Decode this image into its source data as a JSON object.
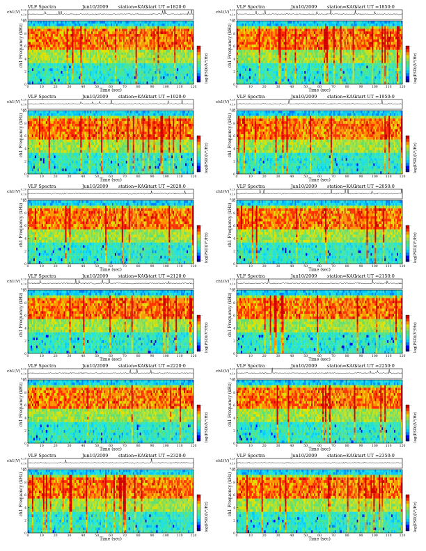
{
  "layout_labels": {
    "ts_label": "ch1(V)",
    "spec_ylabel": "ch1 Frequency (kHz)",
    "xlabel": "Time (sec)",
    "colorbar_label": "log(PSD)(V²/Hz)"
  },
  "chart_data": [
    {
      "type": "heatmap",
      "title": "VLF Spectra",
      "date": "Jun10/2009",
      "station": "station=KAG",
      "start": "start UT =1820:0",
      "ts_ticks": [
        "0.00",
        "0.10",
        "0.20"
      ],
      "y": {
        "label": "Frequency (kHz)",
        "ticks": [
          0,
          2,
          4,
          6,
          8,
          10
        ],
        "range": [
          0,
          10
        ]
      },
      "x": {
        "label": "Time (sec)",
        "ticks": [
          0,
          10,
          20,
          30,
          40,
          50,
          60,
          70,
          80,
          90,
          100,
          110,
          120
        ],
        "range": [
          0,
          120
        ]
      },
      "colorbar": {
        "label": "log(PSD)(V²/Hz)",
        "min": "-",
        "max": "-"
      }
    },
    {
      "type": "heatmap",
      "title": "VLF Spectra",
      "date": "Jun10/2009",
      "station": "station=KAG",
      "start": "start UT =1850:0",
      "ts_ticks": [
        "0.00",
        "0.10",
        "0.20"
      ],
      "y": {
        "label": "Frequency (kHz)",
        "ticks": [
          0,
          2,
          4,
          6,
          8,
          10
        ],
        "range": [
          0,
          10
        ]
      },
      "x": {
        "label": "Time (sec)",
        "ticks": [
          0,
          10,
          20,
          30,
          40,
          50,
          60,
          70,
          80,
          90,
          100,
          110,
          120
        ],
        "range": [
          0,
          120
        ]
      },
      "colorbar": {
        "label": "log(PSD)(V²/Hz)",
        "min": "-",
        "max": "-"
      }
    },
    {
      "type": "heatmap",
      "title": "VLF Spectra",
      "date": "Jun10/2009",
      "station": "station=KAG",
      "start": "start UT =1920:0",
      "ts_ticks": [
        "0.00",
        "0.10",
        "0.20"
      ],
      "y": {
        "label": "Frequency (kHz)",
        "ticks": [
          0,
          2,
          4,
          6,
          8,
          10
        ],
        "range": [
          0,
          10
        ]
      },
      "x": {
        "label": "Time (sec)",
        "ticks": [
          0,
          10,
          20,
          30,
          40,
          50,
          60,
          70,
          80,
          90,
          100,
          110,
          120
        ],
        "range": [
          0,
          120
        ]
      },
      "colorbar": {
        "label": "log(PSD)(V²/Hz)",
        "min": "-",
        "max": "-"
      }
    },
    {
      "type": "heatmap",
      "title": "VLF Spectra",
      "date": "Jun10/2009",
      "station": "station=KAG",
      "start": "start UT =1950:0",
      "ts_ticks": [
        "0.00",
        "0.10",
        "0.20"
      ],
      "y": {
        "label": "Frequency (kHz)",
        "ticks": [
          0,
          2,
          4,
          6,
          8,
          10
        ],
        "range": [
          0,
          10
        ]
      },
      "x": {
        "label": "Time (sec)",
        "ticks": [
          0,
          10,
          20,
          30,
          40,
          50,
          60,
          70,
          80,
          90,
          100,
          110,
          120
        ],
        "range": [
          0,
          120
        ]
      },
      "colorbar": {
        "label": "log(PSD)(V²/Hz)",
        "min": "-",
        "max": "-"
      }
    },
    {
      "type": "heatmap",
      "title": "VLF Spectra",
      "date": "Jun10/2009",
      "station": "station=KAG",
      "start": "start UT =2020:0",
      "ts_ticks": [
        "0.00",
        "0.10",
        "0.20"
      ],
      "y": {
        "label": "Frequency (kHz)",
        "ticks": [
          0,
          2,
          4,
          6,
          8,
          10
        ],
        "range": [
          0,
          10
        ]
      },
      "x": {
        "label": "Time (sec)",
        "ticks": [
          0,
          10,
          20,
          30,
          40,
          50,
          60,
          70,
          80,
          90,
          100,
          110,
          120
        ],
        "range": [
          0,
          120
        ]
      },
      "colorbar": {
        "label": "log(PSD)(V²/Hz)",
        "min": "-",
        "max": "-"
      }
    },
    {
      "type": "heatmap",
      "title": "VLF Spectra",
      "date": "Jun10/2009",
      "station": "station=KAG",
      "start": "start UT =2050:0",
      "ts_ticks": [
        "0.00",
        "0.10",
        "0.20"
      ],
      "y": {
        "label": "Frequency (kHz)",
        "ticks": [
          0,
          2,
          4,
          6,
          8,
          10
        ],
        "range": [
          0,
          10
        ]
      },
      "x": {
        "label": "Time (sec)",
        "ticks": [
          0,
          10,
          20,
          30,
          40,
          50,
          60,
          70,
          80,
          90,
          100,
          110,
          120
        ],
        "range": [
          0,
          120
        ]
      },
      "colorbar": {
        "label": "log(PSD)(V²/Hz)",
        "min": "-",
        "max": "-"
      }
    },
    {
      "type": "heatmap",
      "title": "VLF Spectra",
      "date": "Jun10/2009",
      "station": "station=KAG",
      "start": "start UT =2120:0",
      "ts_ticks": [
        "0.00",
        "0.10",
        "0.20"
      ],
      "y": {
        "label": "Frequency (kHz)",
        "ticks": [
          0,
          2,
          4,
          6,
          8,
          10
        ],
        "range": [
          0,
          10
        ]
      },
      "x": {
        "label": "Time (sec)",
        "ticks": [
          0,
          10,
          20,
          30,
          40,
          50,
          60,
          70,
          80,
          90,
          100,
          110,
          120
        ],
        "range": [
          0,
          120
        ]
      },
      "colorbar": {
        "label": "log(PSD)(V²/Hz)",
        "min": "-",
        "max": "-"
      }
    },
    {
      "type": "heatmap",
      "title": "VLF Spectra",
      "date": "Jun10/2009",
      "station": "station=KAG",
      "start": "start UT =2150:0",
      "ts_ticks": [
        "0.00",
        "0.10",
        "0.20"
      ],
      "y": {
        "label": "Frequency (kHz)",
        "ticks": [
          0,
          2,
          4,
          6,
          8,
          10
        ],
        "range": [
          0,
          10
        ]
      },
      "x": {
        "label": "Time (sec)",
        "ticks": [
          0,
          10,
          20,
          30,
          40,
          50,
          60,
          70,
          80,
          90,
          100,
          110,
          120
        ],
        "range": [
          0,
          120
        ]
      },
      "colorbar": {
        "label": "log(PSD)(V²/Hz)",
        "min": "-",
        "max": "-"
      }
    },
    {
      "type": "heatmap",
      "title": "VLF Spectra",
      "date": "Jun10/2009",
      "station": "station=KAG",
      "start": "start UT =2220:0",
      "ts_ticks": [
        "0.00",
        "0.10",
        "0.20"
      ],
      "y": {
        "label": "Frequency (kHz)",
        "ticks": [
          0,
          2,
          4,
          6,
          8,
          10
        ],
        "range": [
          0,
          10
        ]
      },
      "x": {
        "label": "Time (sec)",
        "ticks": [
          0,
          10,
          20,
          30,
          40,
          50,
          60,
          70,
          80,
          90,
          100,
          110,
          120
        ],
        "range": [
          0,
          120
        ]
      },
      "colorbar": {
        "label": "log(PSD)(V²/Hz)",
        "min": "-",
        "max": "-"
      }
    },
    {
      "type": "heatmap",
      "title": "VLF Spectra",
      "date": "Jun10/2009",
      "station": "station=KAG",
      "start": "start UT =2250:0",
      "ts_ticks": [
        "0.00",
        "0.10",
        "0.20"
      ],
      "y": {
        "label": "Frequency (kHz)",
        "ticks": [
          0,
          2,
          4,
          6,
          8,
          10
        ],
        "range": [
          0,
          10
        ]
      },
      "x": {
        "label": "Time (sec)",
        "ticks": [
          0,
          10,
          20,
          30,
          40,
          50,
          60,
          70,
          80,
          90,
          100,
          110,
          120
        ],
        "range": [
          0,
          120
        ]
      },
      "colorbar": {
        "label": "log(PSD)(V²/Hz)",
        "min": "-",
        "max": "-"
      }
    },
    {
      "type": "heatmap",
      "title": "VLF Spectra",
      "date": "Jun10/2009",
      "station": "station=KAG",
      "start": "start UT =2320:0",
      "ts_ticks": [
        "0.00",
        "0.10",
        "0.20"
      ],
      "y": {
        "label": "Frequency (kHz)",
        "ticks": [
          0,
          2,
          4,
          6,
          8,
          10
        ],
        "range": [
          0,
          10
        ]
      },
      "x": {
        "label": "Time (sec)",
        "ticks": [
          0,
          10,
          20,
          30,
          40,
          50,
          60,
          70,
          80,
          90,
          100,
          110,
          120
        ],
        "range": [
          0,
          120
        ]
      },
      "colorbar": {
        "label": "log(PSD)(V²/Hz)",
        "min": "-",
        "max": "-"
      }
    },
    {
      "type": "heatmap",
      "title": "VLF Spectra",
      "date": "Jun10/2009",
      "station": "station=KAG",
      "start": "start UT =2350:0",
      "ts_ticks": [
        "0.00",
        "0.10",
        "0.20"
      ],
      "y": {
        "label": "Frequency (kHz)",
        "ticks": [
          0,
          2,
          4,
          6,
          8,
          10
        ],
        "range": [
          0,
          10
        ]
      },
      "x": {
        "label": "Time (sec)",
        "ticks": [
          0,
          10,
          20,
          30,
          40,
          50,
          60,
          70,
          80,
          90,
          100,
          110,
          120
        ],
        "range": [
          0,
          120
        ]
      },
      "colorbar": {
        "label": "log(PSD)(V²/Hz)",
        "min": "-",
        "max": "-"
      }
    }
  ],
  "colormap": [
    "#00008f",
    "#0000ff",
    "#0080ff",
    "#00c8ff",
    "#20e0e0",
    "#40e8a0",
    "#60e070",
    "#a0e040",
    "#e0e000",
    "#ff9000",
    "#ff3000",
    "#d00000"
  ]
}
